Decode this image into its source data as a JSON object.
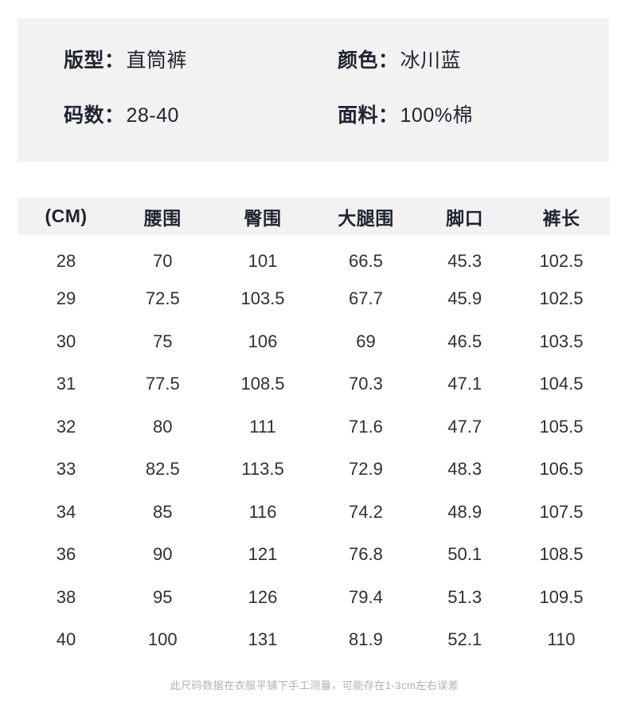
{
  "info_card": {
    "background": "#f2f2f2",
    "items": [
      {
        "label": "版型：",
        "value": "直筒裤"
      },
      {
        "label": "颜色：",
        "value": "冰川蓝"
      },
      {
        "label": "码数：",
        "value": "28-40"
      },
      {
        "label": "面料：",
        "value": "100%棉"
      }
    ]
  },
  "size_table": {
    "unit_header": "(CM)",
    "header_background": "#f2f2f2",
    "columns": [
      "(CM)",
      "腰围",
      "臀围",
      "大腿围",
      "脚口",
      "裤长"
    ],
    "rows": [
      [
        "28",
        "70",
        "101",
        "66.5",
        "45.3",
        "102.5"
      ],
      [
        "29",
        "72.5",
        "103.5",
        "67.7",
        "45.9",
        "102.5"
      ],
      [
        "30",
        "75",
        "106",
        "69",
        "46.5",
        "103.5"
      ],
      [
        "31",
        "77.5",
        "108.5",
        "70.3",
        "47.1",
        "104.5"
      ],
      [
        "32",
        "80",
        "111",
        "71.6",
        "47.7",
        "105.5"
      ],
      [
        "33",
        "82.5",
        "113.5",
        "72.9",
        "48.3",
        "106.5"
      ],
      [
        "34",
        "85",
        "116",
        "74.2",
        "48.9",
        "107.5"
      ],
      [
        "36",
        "90",
        "121",
        "76.8",
        "50.1",
        "108.5"
      ],
      [
        "38",
        "95",
        "126",
        "79.4",
        "51.3",
        "109.5"
      ],
      [
        "40",
        "100",
        "131",
        "81.9",
        "52.1",
        "110"
      ]
    ]
  },
  "footer": {
    "note": "此尺码数据在衣服平铺下手工测量，可能存在1-3cm左右误差"
  },
  "colors": {
    "panel_bg": "#f2f2f2",
    "text_dark": "#1f2430",
    "text_table": "#303030",
    "text_note": "#b1b1b1"
  }
}
